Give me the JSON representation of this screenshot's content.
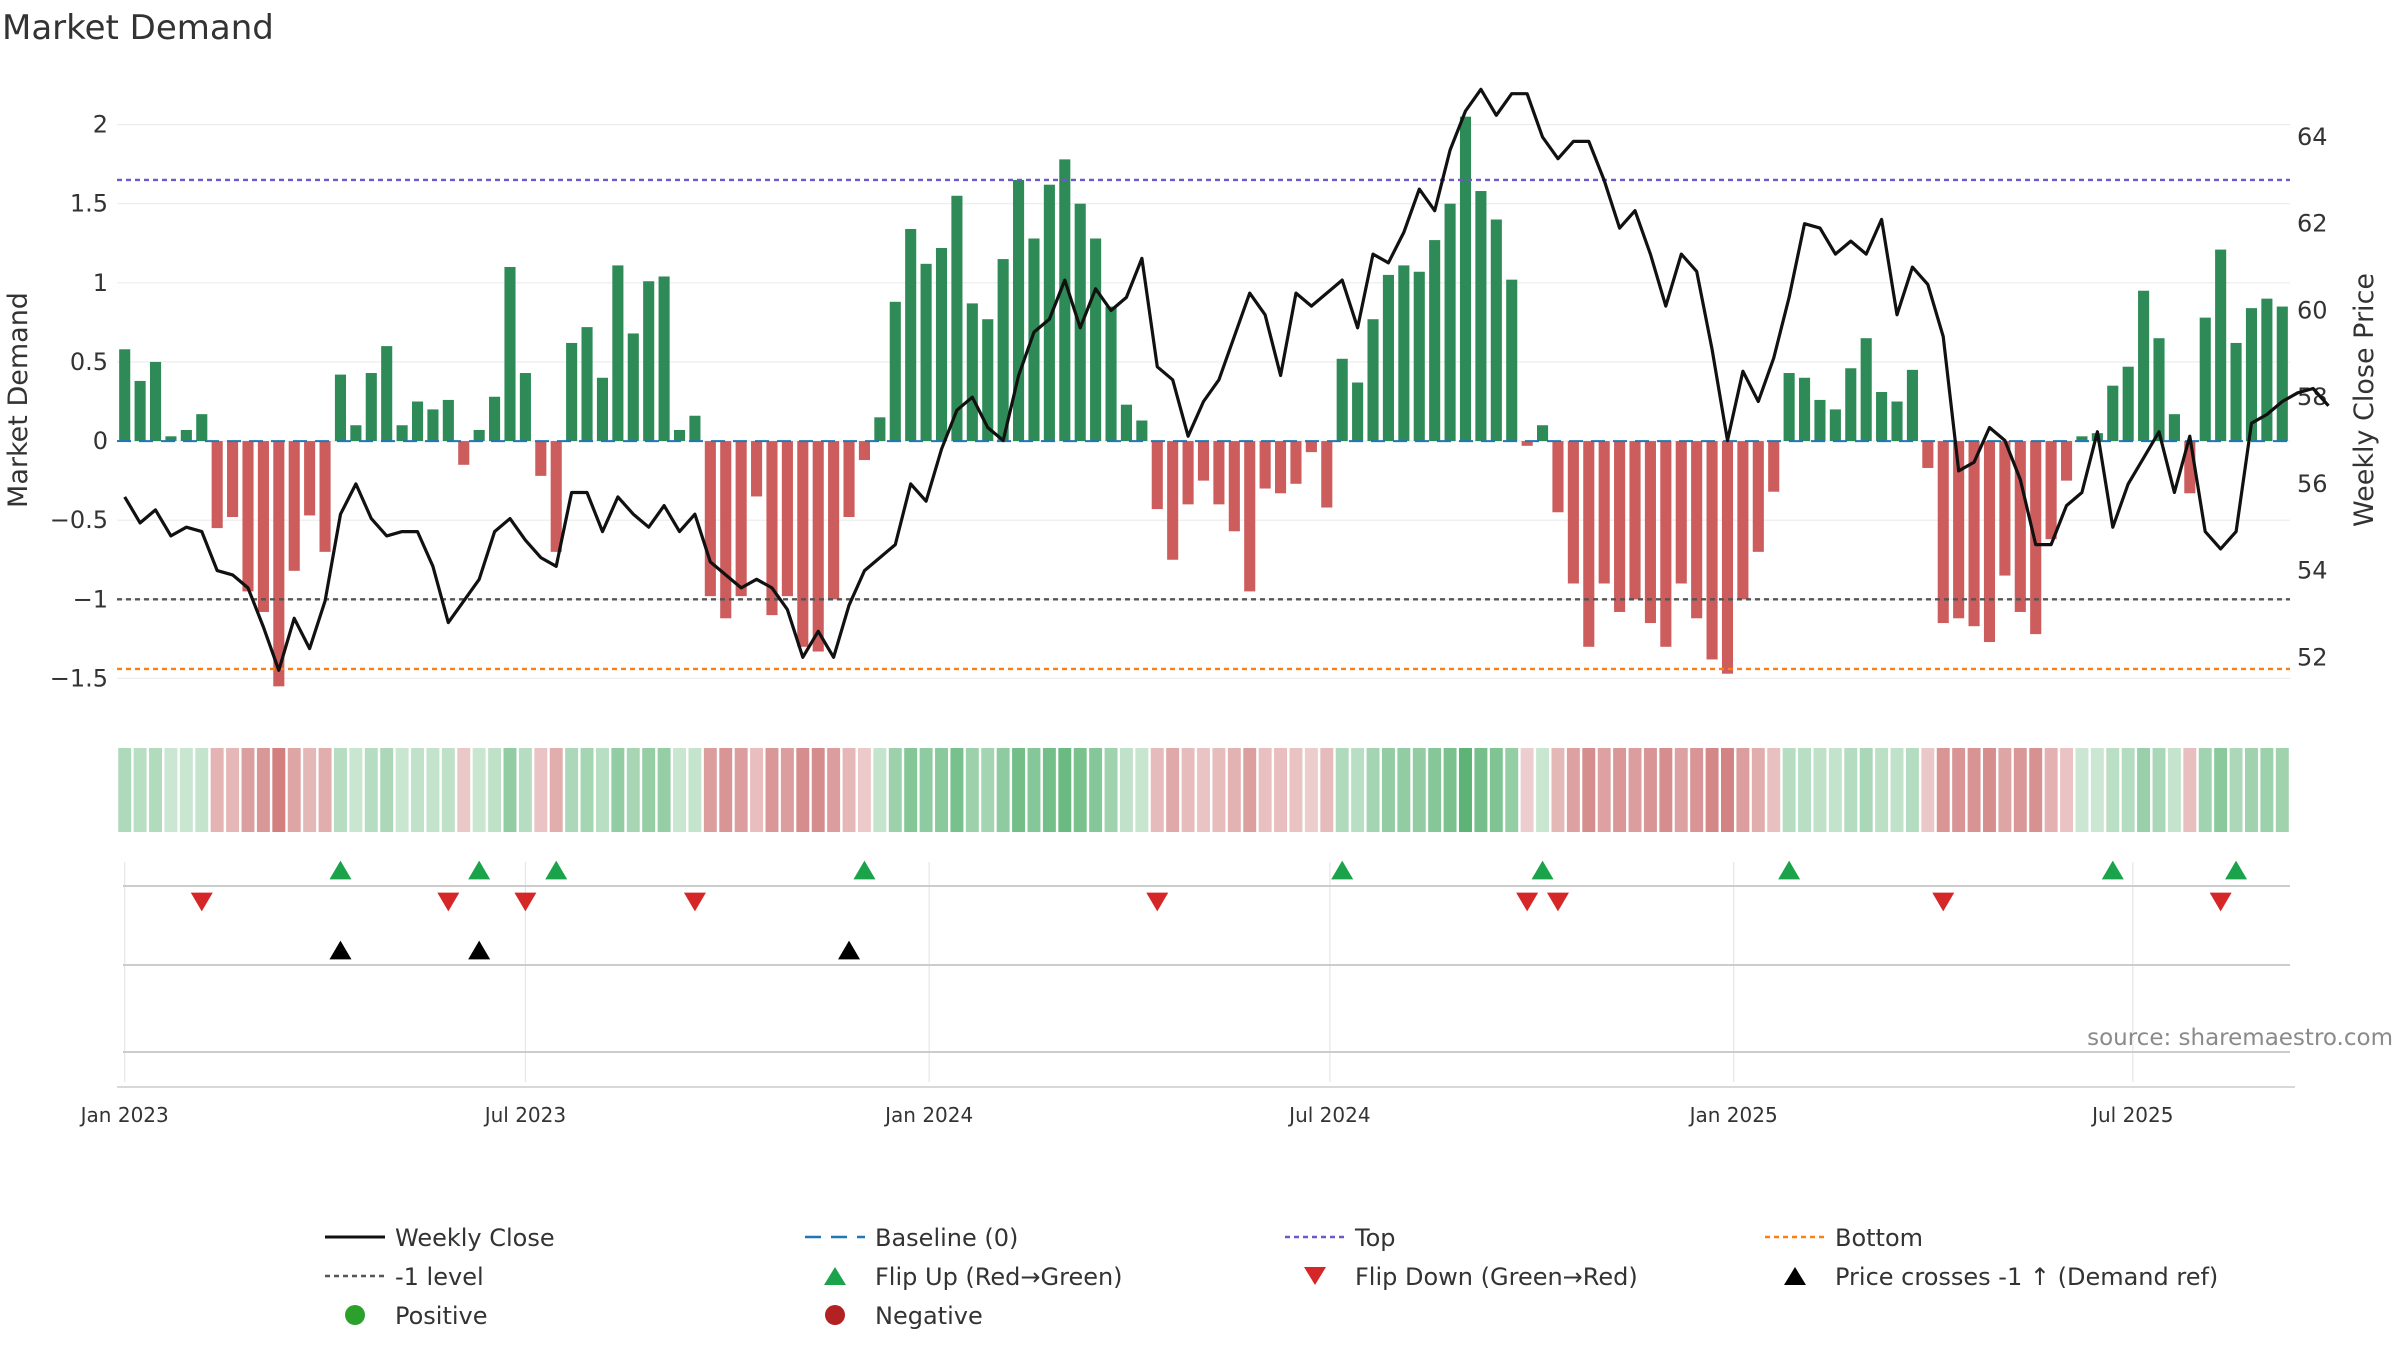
{
  "title": "Market Demand",
  "source": "source: sharemaestro.com",
  "colors": {
    "positive": "#2e8b57",
    "negative": "#cd5c5c",
    "price": "#111111",
    "baseline": "#1f77b4",
    "top": "#6a5acd",
    "bottom": "#ff7f0e",
    "minus1": "#555555",
    "flip_up": "#1aa34a",
    "flip_down": "#d62728",
    "cross": "#000000",
    "positive_dot": "#2ca02c",
    "negative_dot": "#b22222"
  },
  "chart_data": {
    "type": "bar",
    "title": "Market Demand",
    "ylabel": "Market Demand",
    "y2label": "Weekly Close Price",
    "ylim": [
      -1.75,
      2.25
    ],
    "y2lim": [
      50.6,
      65.2
    ],
    "yticks": [
      {
        "v": 2,
        "t": "2"
      },
      {
        "v": 1.5,
        "t": "1.5"
      },
      {
        "v": 1,
        "t": "1"
      },
      {
        "v": 0.5,
        "t": "0.5"
      },
      {
        "v": 0,
        "t": "0"
      },
      {
        "v": -0.5,
        "t": "−0.5"
      },
      {
        "v": -1,
        "t": "−1"
      },
      {
        "v": -1.5,
        "t": "−1.5"
      }
    ],
    "y2ticks": [
      {
        "v": 64,
        "t": "64"
      },
      {
        "v": 62,
        "t": "62"
      },
      {
        "v": 60,
        "t": "60"
      },
      {
        "v": 58,
        "t": "58"
      },
      {
        "v": 56,
        "t": "56"
      },
      {
        "v": 54,
        "t": "54"
      },
      {
        "v": 52,
        "t": "52"
      }
    ],
    "xticks": [
      {
        "w": 0.5,
        "t": "Jan 2023"
      },
      {
        "w": 26.5,
        "t": "Jul 2023"
      },
      {
        "w": 52.7,
        "t": "Jan 2024"
      },
      {
        "w": 78.7,
        "t": "Jul 2024"
      },
      {
        "w": 104.9,
        "t": "Jan 2025"
      },
      {
        "w": 130.8,
        "t": "Jul 2025"
      }
    ],
    "top_level": 1.65,
    "bottom_level": -1.44,
    "minus1_level": -1.0,
    "demand": [
      0.58,
      0.38,
      0.5,
      0.03,
      0.07,
      0.17,
      -0.55,
      -0.48,
      -0.95,
      -1.08,
      -1.55,
      -0.82,
      -0.47,
      -0.7,
      0.42,
      0.1,
      0.43,
      0.6,
      0.1,
      0.25,
      0.2,
      0.26,
      -0.15,
      0.07,
      0.28,
      1.1,
      0.43,
      -0.22,
      -0.7,
      0.62,
      0.72,
      0.4,
      1.11,
      0.68,
      1.01,
      1.04,
      0.07,
      0.16,
      -0.98,
      -1.12,
      -0.98,
      -0.35,
      -1.1,
      -0.98,
      -1.3,
      -1.33,
      -1.0,
      -0.48,
      -0.12,
      0.15,
      0.88,
      1.34,
      1.12,
      1.22,
      1.55,
      0.87,
      0.77,
      1.15,
      1.65,
      1.28,
      1.62,
      1.78,
      1.5,
      1.28,
      0.85,
      0.23,
      0.13,
      -0.43,
      -0.75,
      -0.4,
      -0.25,
      -0.4,
      -0.57,
      -0.95,
      -0.3,
      -0.33,
      -0.27,
      -0.07,
      -0.42,
      0.52,
      0.37,
      0.77,
      1.05,
      1.11,
      1.07,
      1.27,
      1.5,
      2.05,
      1.58,
      1.4,
      1.02,
      -0.03,
      0.1,
      -0.45,
      -0.9,
      -1.3,
      -0.9,
      -1.08,
      -1.0,
      -1.15,
      -1.3,
      -0.9,
      -1.12,
      -1.38,
      -1.47,
      -1.0,
      -0.7,
      -0.32,
      0.43,
      0.4,
      0.26,
      0.2,
      0.46,
      0.65,
      0.31,
      0.25,
      0.45,
      -0.17,
      -1.15,
      -1.12,
      -1.17,
      -1.27,
      -0.85,
      -1.08,
      -1.22,
      -0.62,
      -0.25,
      0.03,
      0.05,
      0.35,
      0.47,
      0.95,
      0.65,
      0.17,
      -0.33,
      0.78,
      1.21,
      0.62,
      0.84,
      0.9,
      0.85
    ],
    "price": [
      55.7,
      55.1,
      55.4,
      54.8,
      55.0,
      54.9,
      54.0,
      53.9,
      53.6,
      52.7,
      51.7,
      52.9,
      52.2,
      53.3,
      55.3,
      56.0,
      55.2,
      54.8,
      54.9,
      54.9,
      54.1,
      52.8,
      53.3,
      53.8,
      54.9,
      55.2,
      54.7,
      54.3,
      54.1,
      55.8,
      55.8,
      54.9,
      55.7,
      55.3,
      55.0,
      55.5,
      54.9,
      55.3,
      54.2,
      53.9,
      53.6,
      53.8,
      53.6,
      53.1,
      52.0,
      52.6,
      52.0,
      53.2,
      54.0,
      54.3,
      54.6,
      56.0,
      55.6,
      56.8,
      57.7,
      58.0,
      57.3,
      57.0,
      58.5,
      59.5,
      59.8,
      60.7,
      59.6,
      60.5,
      60.0,
      60.3,
      61.2,
      58.7,
      58.4,
      57.1,
      57.9,
      58.4,
      59.4,
      60.4,
      59.9,
      58.5,
      60.4,
      60.1,
      60.4,
      60.7,
      59.6,
      61.3,
      61.1,
      61.8,
      62.8,
      62.3,
      63.7,
      64.6,
      65.1,
      64.5,
      65.0,
      65.0,
      64.0,
      63.5,
      63.9,
      63.9,
      63.0,
      61.9,
      62.3,
      61.3,
      60.1,
      61.3,
      60.9,
      59.1,
      57.0,
      58.6,
      57.9,
      58.9,
      60.3,
      62.0,
      61.9,
      61.3,
      61.6,
      61.3,
      62.1,
      59.9,
      61.0,
      60.6,
      59.4,
      56.3,
      56.5,
      57.3,
      57.0,
      56.1,
      54.6,
      54.6,
      55.5,
      55.8,
      57.2,
      55.0,
      56.0,
      56.6,
      57.2,
      55.8,
      57.1,
      54.9,
      54.5,
      54.9,
      57.4,
      57.6,
      57.9,
      58.1,
      58.2,
      57.8
    ],
    "flip_up_weeks": [
      14,
      23,
      28,
      48,
      79,
      92,
      108,
      129,
      137
    ],
    "flip_down_weeks": [
      5,
      21,
      26,
      37,
      67,
      91,
      93,
      118,
      136
    ],
    "cross_up_weeks": [
      14,
      23,
      47
    ]
  },
  "legend": [
    {
      "label": "Weekly Close",
      "kind": "line"
    },
    {
      "label": "Baseline (0)",
      "kind": "dash-blue"
    },
    {
      "label": "Top",
      "kind": "dot-purple"
    },
    {
      "label": "Bottom",
      "kind": "dot-orange"
    },
    {
      "label": "-1 level",
      "kind": "dot-gray"
    },
    {
      "label": "Flip Up (Red→Green)",
      "kind": "tri-up-green"
    },
    {
      "label": "Flip Down (Green→Red)",
      "kind": "tri-down-red"
    },
    {
      "label": "Price crosses -1 ↑ (Demand ref)",
      "kind": "tri-up-black"
    },
    {
      "label": "Positive",
      "kind": "dot-green"
    },
    {
      "label": "Negative",
      "kind": "dot-red"
    }
  ]
}
